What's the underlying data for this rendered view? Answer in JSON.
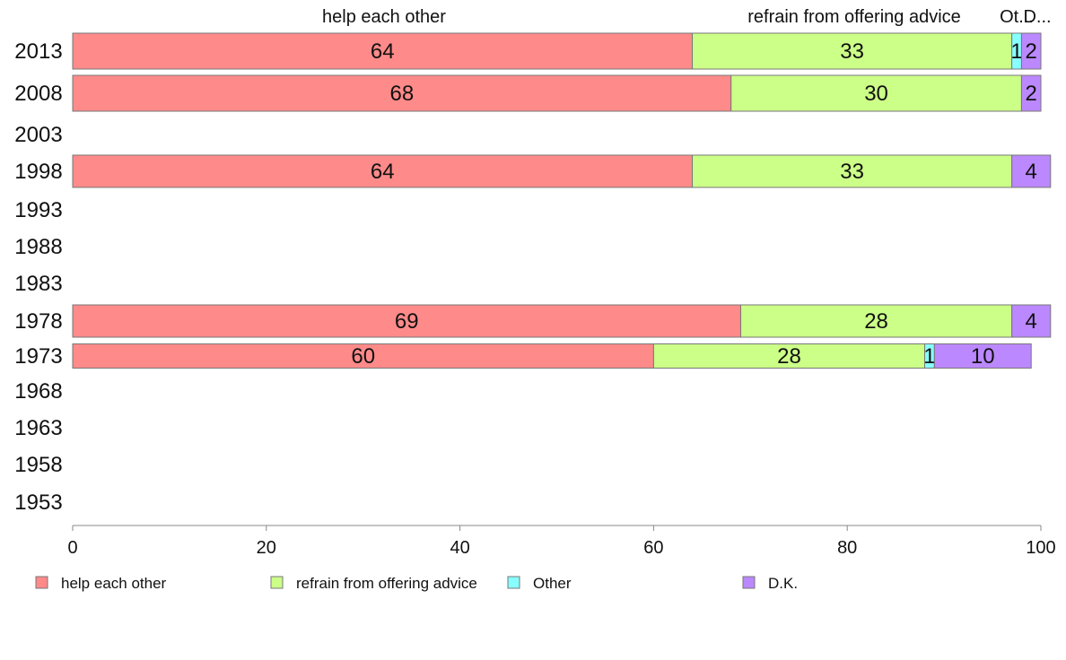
{
  "chart_data": {
    "type": "bar",
    "orientation": "horizontal",
    "stacked": true,
    "categories": [
      "2013",
      "2008",
      "2003",
      "1998",
      "1993",
      "1988",
      "1983",
      "1978",
      "1973",
      "1968",
      "1963",
      "1958",
      "1953"
    ],
    "series": [
      {
        "name": "help each other",
        "color": "#ff8a8a",
        "values": [
          64,
          68,
          null,
          64,
          null,
          null,
          null,
          69,
          60,
          null,
          null,
          null,
          null
        ]
      },
      {
        "name": "refrain from offering advice",
        "color": "#ccff88",
        "values": [
          33,
          30,
          null,
          33,
          null,
          null,
          null,
          28,
          28,
          null,
          null,
          null,
          null
        ]
      },
      {
        "name": "Other",
        "color": "#88ffff",
        "values": [
          1,
          0,
          null,
          0,
          null,
          null,
          null,
          0,
          1,
          null,
          null,
          null,
          null
        ]
      },
      {
        "name": "D.K.",
        "color": "#bb88ff",
        "values": [
          2,
          2,
          null,
          4,
          null,
          null,
          null,
          4,
          10,
          null,
          null,
          null,
          null
        ]
      }
    ],
    "top_labels": [
      "help each other",
      "refrain from offering advice",
      "Ot...",
      "D..."
    ],
    "x_ticks": [
      "0",
      "20",
      "40",
      "60",
      "80",
      "100"
    ],
    "xlim": [
      0,
      100
    ],
    "xlabel": "",
    "ylabel": "",
    "grid": false,
    "legend_position": "bottom"
  }
}
